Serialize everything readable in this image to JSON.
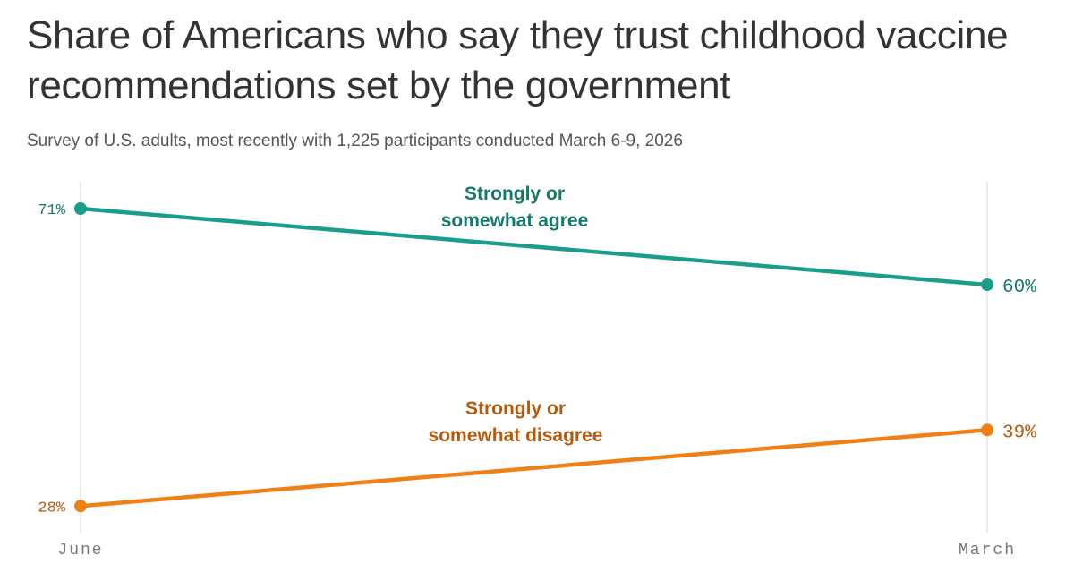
{
  "title": "Share of Americans who say they trust childhood vaccine recommendations set by the government",
  "subtitle": "Survey of U.S. adults, most recently with 1,225 participants conducted March 6-9, 2026",
  "chart_data": {
    "type": "line",
    "categories": [
      "June",
      "March"
    ],
    "ylim": [
      0,
      100
    ],
    "grid": false,
    "series": [
      {
        "name": "Strongly or somewhat agree",
        "name_lines": [
          "Strongly or",
          "somewhat agree"
        ],
        "values": [
          71,
          60
        ],
        "labels": [
          "71%",
          "60%"
        ],
        "color": "#1a9e8c",
        "text_color": "#137a6b"
      },
      {
        "name": "Strongly or somewhat disagree",
        "name_lines": [
          "Strongly or",
          "somewhat disagree"
        ],
        "values": [
          28,
          39
        ],
        "labels": [
          "28%",
          "39%"
        ],
        "color": "#f07f14",
        "text_color": "#b55a0c"
      }
    ]
  }
}
